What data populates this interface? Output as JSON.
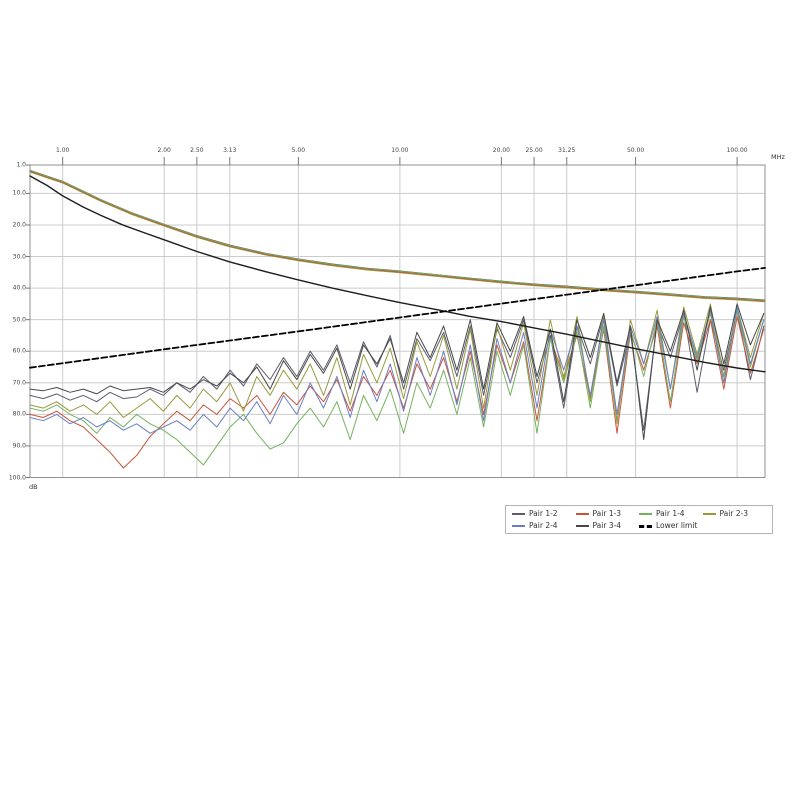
{
  "page": {
    "background": "#ffffff"
  },
  "chart_data": {
    "type": "line",
    "title": "",
    "x_axis": {
      "unit": "MHz",
      "scale": "log",
      "range": [
        0.8,
        121
      ],
      "ticks": [
        1,
        2,
        2.5,
        3.13,
        5,
        10,
        20,
        25,
        31.25,
        50,
        100
      ],
      "tick_labels": [
        "1.00",
        "2.00",
        "2.50",
        "3.13",
        "5.00",
        "10.00",
        "20.00",
        "25.00",
        "31.25",
        "50.00",
        "100.00"
      ]
    },
    "y_axis": {
      "unit": "dB",
      "scale": "linear",
      "inverted": true,
      "range": [
        1,
        100
      ],
      "ticks": [
        1,
        10,
        20,
        30,
        40,
        50,
        60,
        70,
        80,
        90,
        100
      ],
      "tick_labels": [
        "1.0",
        "10.0",
        "20.0",
        "30.0",
        "40.0",
        "50.0",
        "60.0",
        "70.0",
        "80.0",
        "90.0",
        "100.0"
      ]
    },
    "grid": {
      "line_color": "#cccccc",
      "frame_color": "#909090"
    },
    "noisy_x_sampling": {
      "type": "log-uniform",
      "f_start": 0.8,
      "f_end": 120,
      "n": 56
    },
    "series": [
      {
        "name": "Pair 1-2",
        "color": "#5c5c6e",
        "values": [
          74,
          75,
          73.5,
          75.5,
          74,
          76,
          73,
          75,
          74.5,
          72,
          74,
          70,
          73,
          68,
          72,
          66,
          71,
          64,
          69,
          62,
          68,
          60,
          66,
          58,
          70,
          57,
          65,
          55,
          72,
          56,
          63,
          54,
          68,
          52,
          74,
          53,
          62,
          50,
          70,
          55,
          78,
          52,
          64,
          49,
          71,
          54,
          85,
          51,
          62,
          48,
          73,
          50,
          66,
          47,
          69,
          52
        ]
      },
      {
        "name": "Pair 1-3",
        "color": "#c8553a",
        "values": [
          80,
          81,
          79,
          82,
          84,
          88,
          92,
          97,
          93,
          87,
          83,
          79,
          82,
          77,
          80,
          75,
          78,
          74,
          80,
          73,
          77,
          71,
          76,
          69,
          79,
          68,
          74,
          66,
          78,
          64,
          72,
          62,
          76,
          60,
          80,
          58,
          70,
          57,
          82,
          56,
          68,
          55,
          75,
          53,
          86,
          54,
          66,
          52,
          78,
          51,
          64,
          50,
          72,
          49,
          67,
          53
        ]
      },
      {
        "name": "Pair 1-4",
        "color": "#74b35e",
        "values": [
          78,
          79,
          77,
          80,
          82,
          86,
          81,
          84,
          80,
          83,
          85,
          88,
          92,
          96,
          90,
          84,
          80,
          86,
          91,
          89,
          83,
          78,
          84,
          76,
          88,
          74,
          82,
          72,
          86,
          70,
          78,
          66,
          80,
          62,
          84,
          60,
          74,
          58,
          86,
          56,
          70,
          54,
          78,
          52,
          82,
          53,
          68,
          50,
          76,
          49,
          63,
          48,
          70,
          47,
          65,
          50
        ]
      },
      {
        "name": "Pair 2-3",
        "color": "#9a9a3d",
        "values": [
          77,
          78,
          76,
          79,
          77,
          80,
          76,
          81,
          78,
          75,
          79,
          74,
          78,
          72,
          76,
          70,
          79,
          68,
          74,
          66,
          72,
          64,
          74,
          62,
          77,
          61,
          70,
          59,
          75,
          57,
          68,
          55,
          72,
          53,
          78,
          52,
          66,
          51,
          74,
          50,
          69,
          49,
          76,
          48,
          83,
          50,
          64,
          47,
          72,
          46,
          61,
          45,
          68,
          46,
          62,
          48
        ]
      },
      {
        "name": "Pair 2-4",
        "color": "#6b7fc4",
        "values": [
          81,
          82,
          80,
          83,
          81,
          84,
          82,
          85,
          83,
          86,
          84,
          82,
          85,
          80,
          84,
          78,
          82,
          76,
          83,
          74,
          80,
          70,
          78,
          68,
          81,
          66,
          76,
          64,
          79,
          62,
          74,
          60,
          77,
          58,
          82,
          56,
          70,
          54,
          78,
          53,
          66,
          52,
          74,
          50,
          80,
          52,
          64,
          49,
          72,
          48,
          62,
          47,
          70,
          46,
          64,
          50
        ]
      },
      {
        "name": "Pair 3-4",
        "color": "#474747",
        "values": [
          72,
          72.5,
          71.5,
          73,
          72,
          73.5,
          71,
          72.5,
          72,
          71.5,
          73,
          70,
          72,
          69,
          71,
          67,
          70,
          65,
          72,
          63,
          69,
          61,
          67,
          59,
          72,
          58,
          64,
          56,
          70,
          54,
          62,
          52,
          66,
          50,
          72,
          51,
          60,
          49,
          68,
          53,
          76,
          50,
          62,
          48,
          70,
          52,
          88,
          50,
          60,
          47,
          66,
          46,
          64,
          45,
          58,
          48
        ]
      }
    ],
    "smooth_bundle": {
      "description": "overlapping smooth curves for all six pairs (red/green/olive visually dominant)",
      "colors": [
        "#5c5c6e",
        "#6b7fc4",
        "#474747",
        "#9a9a3d",
        "#c8553a",
        "#74b35e"
      ],
      "points": [
        [
          0.8,
          2.9
        ],
        [
          1,
          6.4
        ],
        [
          1.3,
          12.2
        ],
        [
          1.6,
          16.3
        ],
        [
          2,
          20
        ],
        [
          2.5,
          23.6
        ],
        [
          3.13,
          26.6
        ],
        [
          4,
          29.2
        ],
        [
          5,
          31
        ],
        [
          6.3,
          32.6
        ],
        [
          8,
          33.9
        ],
        [
          10,
          34.8
        ],
        [
          13,
          36
        ],
        [
          16,
          37
        ],
        [
          20,
          38
        ],
        [
          25,
          38.9
        ],
        [
          31.25,
          39.6
        ],
        [
          40,
          40.5
        ],
        [
          50,
          41.2
        ],
        [
          63,
          42
        ],
        [
          80,
          42.9
        ],
        [
          100,
          43.4
        ],
        [
          121,
          44
        ]
      ]
    },
    "black_curve": {
      "color": "#1d1d1d",
      "points": [
        [
          0.8,
          4.5
        ],
        [
          0.9,
          7.5
        ],
        [
          1,
          10.8
        ],
        [
          1.15,
          14.3
        ],
        [
          1.3,
          17
        ],
        [
          1.5,
          19.9
        ],
        [
          1.75,
          22.5
        ],
        [
          2,
          24.7
        ],
        [
          2.5,
          28.4
        ],
        [
          3.13,
          31.7
        ],
        [
          4,
          34.8
        ],
        [
          5,
          37.4
        ],
        [
          6.3,
          40
        ],
        [
          8,
          42.4
        ],
        [
          10,
          44.6
        ],
        [
          13,
          46.9
        ],
        [
          16,
          48.9
        ],
        [
          20,
          50.6
        ],
        [
          25,
          52.6
        ],
        [
          31.25,
          54.6
        ],
        [
          40,
          57
        ],
        [
          50,
          59.2
        ],
        [
          63,
          61.3
        ],
        [
          80,
          63.5
        ],
        [
          100,
          65.3
        ],
        [
          121,
          66.5
        ]
      ]
    },
    "limit": {
      "name": "Lower limit",
      "color": "#000000",
      "style": "dashed",
      "points": [
        [
          0.8,
          65.2
        ],
        [
          2,
          59.4
        ],
        [
          5,
          53.7
        ],
        [
          10,
          49.3
        ],
        [
          20,
          44.9
        ],
        [
          50,
          39.1
        ],
        [
          100,
          34.7
        ],
        [
          121,
          33.6
        ]
      ]
    }
  }
}
